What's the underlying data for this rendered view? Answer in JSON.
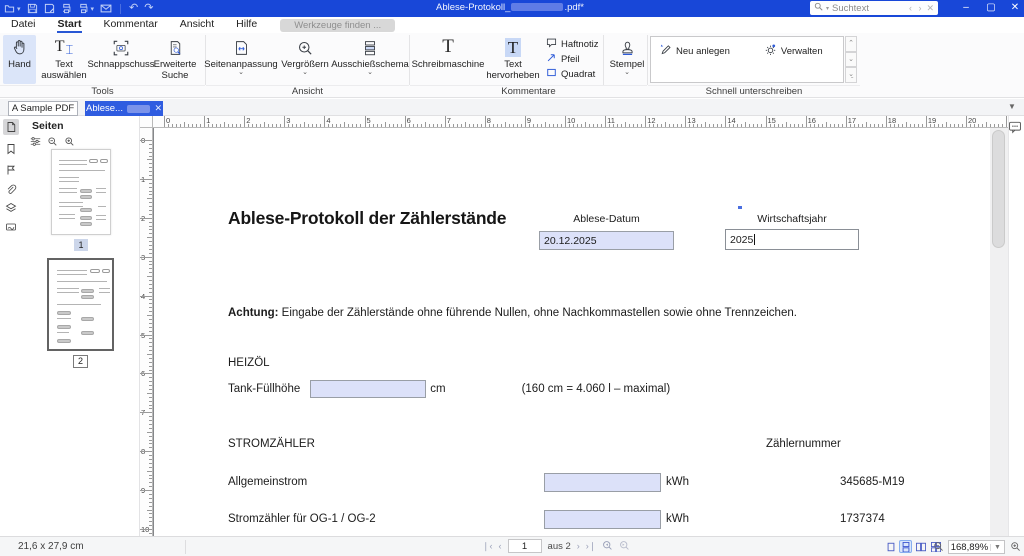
{
  "titlebar": {
    "title_prefix": "Ablese-Protokoll_",
    "title_suffix": ".pdf*",
    "search_placeholder": "Suchtext"
  },
  "menubar": {
    "items": [
      "Datei",
      "Start",
      "Kommentar",
      "Ansicht",
      "Hilfe"
    ],
    "find_tools": "Werkzeuge finden ..."
  },
  "ribbon": {
    "group_tools": "Tools",
    "group_view": "Ansicht",
    "group_comments": "Kommentare",
    "group_sign": "Schnell unterschreiben",
    "hand": "Hand",
    "text_select": "Text auswählen",
    "snapshot": "Schnappschuss",
    "adv_search": "Erweiterte Suche",
    "page_fit": "Seitenanpassung",
    "zoom": "Vergrößern",
    "imposition": "Ausschießschema",
    "typewriter": "Schreibmaschine",
    "highlight": "Text hervorheben",
    "note": "Haftnotiz",
    "arrow": "Pfeil",
    "square": "Quadrat",
    "stamp": "Stempel",
    "sign_new": "Neu anlegen",
    "sign_manage": "Verwalten"
  },
  "tabs": [
    {
      "label": "A Sample PDF"
    },
    {
      "label": "Ablese..."
    }
  ],
  "panel": {
    "title": "Seiten",
    "page1": "1",
    "page2": "2"
  },
  "rulers": {
    "h": [
      "0",
      "1",
      "2",
      "3",
      "4",
      "5",
      "6",
      "7",
      "8",
      "9",
      "10",
      "11",
      "12",
      "13",
      "14",
      "15",
      "16",
      "17",
      "18",
      "19",
      "20",
      "21"
    ],
    "v": [
      "0",
      "1",
      "2",
      "3",
      "4",
      "5",
      "6",
      "7",
      "8",
      "9",
      "10"
    ]
  },
  "document": {
    "heading": "Ablese-Protokoll der Zählerstände",
    "date_label": "Ablese-Datum",
    "date_value": "20.12.2025",
    "year_label": "Wirtschaftsjahr",
    "year_value": "2025",
    "notice_bold": "Achtung:",
    "notice_rest": " Eingabe der Zählerstände ohne führende Nullen, ohne Nachkommastellen sowie ohne Trennzeichen.",
    "heizoel_title": "HEIZÖL",
    "tank_label": "Tank-Füllhöhe",
    "tank_unit": "cm",
    "tank_note": "(160 cm = 4.060 l  – maximal)",
    "strom_title": "STROMZÄHLER",
    "meter_header": "Zählernummer",
    "rows": [
      {
        "label": "Allgemeinstrom",
        "unit": "kWh",
        "meter": "345685-M19"
      },
      {
        "label": "Stromzähler für OG-1 / OG-2",
        "unit": "kWh",
        "meter": "1737374"
      }
    ]
  },
  "statusbar": {
    "page_size": "21,6 x 27,9 cm",
    "page_value": "1",
    "page_total": "aus 2",
    "zoom_value": "168,89%"
  }
}
